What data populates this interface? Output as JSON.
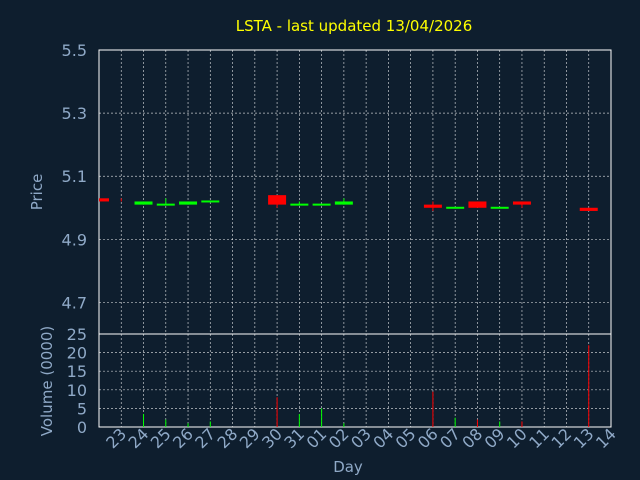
{
  "colors": {
    "background": "#0e1e2e",
    "title": "#ffff00",
    "axis_text": "#8fa9c7",
    "axis_line": "#ffffff",
    "grid": "#ffffff",
    "up": "#00ff00",
    "down": "#ff0000"
  },
  "chart_data": {
    "type": "candlestick",
    "title": "LSTA - last updated 13/04/2026",
    "price_panel": {
      "ylabel": "Price",
      "ylim": [
        4.6,
        5.5
      ],
      "yticks": [
        "5.5",
        "5.3",
        "5.1",
        "4.9",
        "4.7"
      ],
      "ytick_values": [
        5.5,
        5.3,
        5.1,
        4.9,
        4.7
      ],
      "grid": true
    },
    "volume_panel": {
      "ylabel": "Volume (0000)",
      "ylim": [
        0,
        25
      ],
      "yticks": [
        "25",
        "20",
        "15",
        "10",
        "5",
        "0"
      ],
      "ytick_values": [
        25,
        20,
        15,
        10,
        5,
        0
      ],
      "grid": true
    },
    "xlabel": "Day",
    "x_ticks": [
      "23",
      "24",
      "25",
      "26",
      "27",
      "28",
      "29",
      "30",
      "31",
      "01",
      "02",
      "03",
      "04",
      "05",
      "06",
      "07",
      "08",
      "09",
      "10",
      "11",
      "12",
      "13",
      "14"
    ],
    "candles": [
      {
        "day": "23",
        "open": 5.03,
        "close": 5.02,
        "high": 5.03,
        "low": 5.02,
        "volume": 0
      },
      {
        "day": "24",
        "open": 5.01,
        "close": 5.02,
        "high": 5.02,
        "low": 5.01,
        "volume": 3.5
      },
      {
        "day": "25",
        "open": 5.01,
        "close": 5.01,
        "high": 5.03,
        "low": 5.01,
        "volume": 2
      },
      {
        "day": "26",
        "open": 5.01,
        "close": 5.02,
        "high": 5.02,
        "low": 5.01,
        "volume": 1
      },
      {
        "day": "27",
        "open": 5.02,
        "close": 5.02,
        "high": 5.02,
        "low": 5.02,
        "volume": 1.5
      },
      {
        "day": "30",
        "open": 5.04,
        "close": 5.01,
        "high": 5.04,
        "low": 5.0,
        "volume": 8
      },
      {
        "day": "31",
        "open": 5.01,
        "close": 5.01,
        "high": 5.02,
        "low": 5.01,
        "volume": 3.5
      },
      {
        "day": "01",
        "open": 5.01,
        "close": 5.01,
        "high": 5.01,
        "low": 5.01,
        "volume": 5
      },
      {
        "day": "02",
        "open": 5.01,
        "close": 5.02,
        "high": 5.03,
        "low": 5.01,
        "volume": 1
      },
      {
        "day": "06",
        "open": 5.01,
        "close": 5.0,
        "high": 5.02,
        "low": 4.99,
        "volume": 9.5
      },
      {
        "day": "07",
        "open": 5.0,
        "close": 5.0,
        "high": 5.0,
        "low": 5.0,
        "volume": 2.5
      },
      {
        "day": "08",
        "open": 5.02,
        "close": 5.0,
        "high": 5.02,
        "low": 5.0,
        "volume": 2
      },
      {
        "day": "09",
        "open": 5.0,
        "close": 5.0,
        "high": 5.0,
        "low": 5.0,
        "volume": 1.5
      },
      {
        "day": "10",
        "open": 5.02,
        "close": 5.01,
        "high": 5.02,
        "low": 5.0,
        "volume": 1.5
      },
      {
        "day": "13",
        "open": 5.0,
        "close": 4.99,
        "high": 5.0,
        "low": 4.99,
        "volume": 22
      }
    ]
  }
}
